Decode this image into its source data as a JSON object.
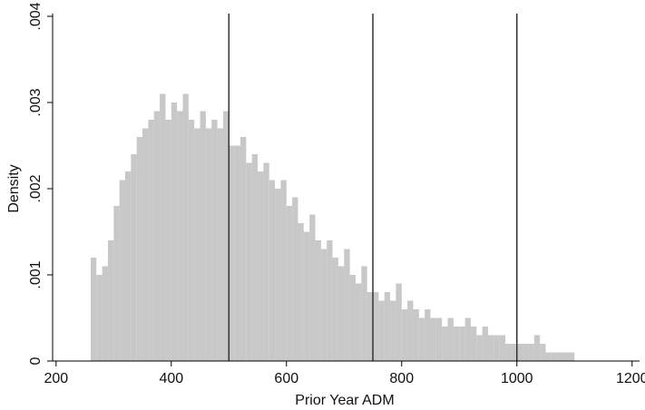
{
  "chart_data": {
    "type": "histogram",
    "x_label": "Prior Year ADM",
    "y_label": "Density",
    "bins": [
      260,
      270,
      280,
      290,
      300,
      310,
      320,
      330,
      340,
      350,
      360,
      370,
      380,
      390,
      400,
      410,
      420,
      430,
      440,
      450,
      460,
      470,
      480,
      490,
      500,
      510,
      520,
      530,
      540,
      550,
      560,
      570,
      580,
      590,
      600,
      610,
      620,
      630,
      640,
      650,
      660,
      670,
      680,
      690,
      700,
      710,
      720,
      730,
      740,
      750,
      760,
      770,
      780,
      790,
      800,
      810,
      820,
      830,
      840,
      850,
      860,
      870,
      880,
      890,
      900,
      910,
      920,
      930,
      940,
      950,
      960,
      970,
      980,
      990,
      1000,
      1010,
      1020,
      1030,
      1040,
      1050,
      1060,
      1070,
      1080,
      1090,
      1100
    ],
    "values": [
      0.0012,
      0.001,
      0.0011,
      0.0014,
      0.0018,
      0.0021,
      0.0022,
      0.0024,
      0.0026,
      0.0027,
      0.0028,
      0.0029,
      0.0031,
      0.0028,
      0.003,
      0.0029,
      0.0031,
      0.0028,
      0.0027,
      0.0029,
      0.0027,
      0.0028,
      0.0027,
      0.0029,
      0.0025,
      0.0025,
      0.0026,
      0.0023,
      0.0024,
      0.0022,
      0.0023,
      0.0021,
      0.002,
      0.0021,
      0.0018,
      0.0019,
      0.0016,
      0.0015,
      0.0017,
      0.0014,
      0.0013,
      0.0014,
      0.0012,
      0.0011,
      0.0013,
      0.001,
      0.0009,
      0.0011,
      0.0008,
      0.0008,
      0.0007,
      0.0008,
      0.0007,
      0.0009,
      0.0006,
      0.0007,
      0.0006,
      0.0005,
      0.0006,
      0.0005,
      0.0005,
      0.0004,
      0.0005,
      0.0004,
      0.0004,
      0.0005,
      0.0004,
      0.0003,
      0.0004,
      0.0003,
      0.0003,
      0.0003,
      0.0002,
      0.0002,
      0.0002,
      0.0002,
      0.0002,
      0.0003,
      0.0002,
      0.0001,
      0.0001,
      0.0001,
      0.0001,
      0.0001
    ],
    "color": "#c8c8c8",
    "vlines": [
      500,
      750,
      1000
    ],
    "vline_color": "#333333",
    "xlim": [
      194,
      1213
    ],
    "xticks": [
      200,
      400,
      600,
      800,
      1000,
      1200
    ],
    "ylim": [
      0,
      0.004
    ],
    "yticks": [
      0,
      {
        "value": 0.001,
        "label": ".001"
      },
      {
        "value": 0.002,
        "label": ".002"
      },
      {
        "value": 0.003,
        "label": ".003"
      },
      {
        "value": 0.004,
        "label": ".004"
      }
    ]
  }
}
